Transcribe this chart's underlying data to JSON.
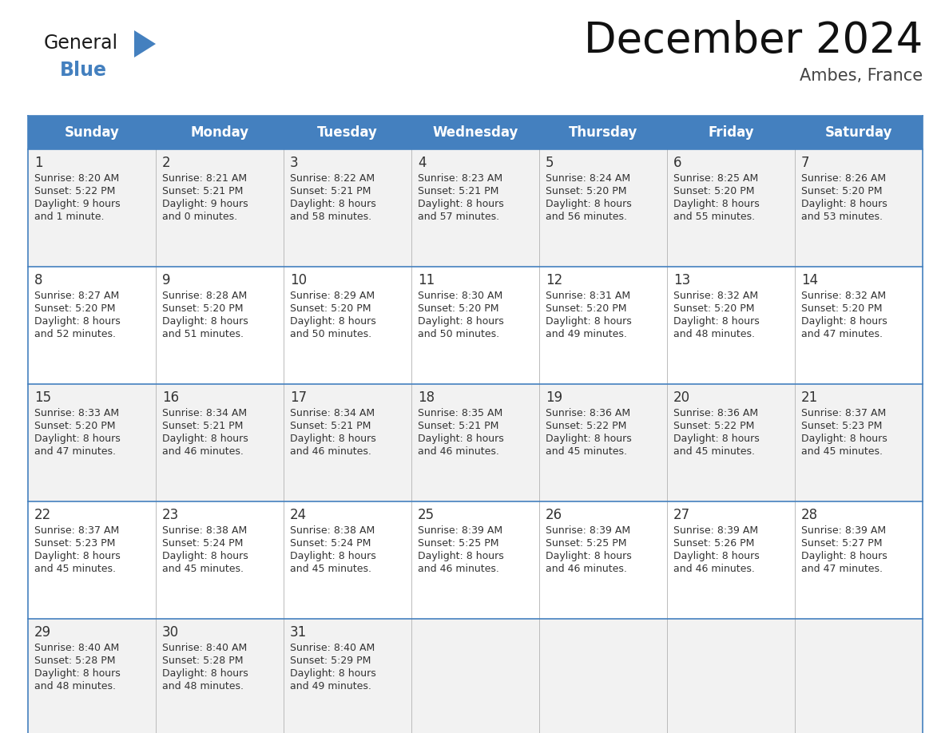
{
  "title": "December 2024",
  "subtitle": "Ambes, France",
  "header_color": "#4480BF",
  "header_text_color": "#FFFFFF",
  "cell_bg_even": "#F2F2F2",
  "cell_bg_odd": "#FFFFFF",
  "border_color": "#4480BF",
  "light_border_color": "#BBBBBB",
  "text_color": "#333333",
  "day_names": [
    "Sunday",
    "Monday",
    "Tuesday",
    "Wednesday",
    "Thursday",
    "Friday",
    "Saturday"
  ],
  "days": [
    {
      "day": 1,
      "col": 0,
      "row": 0,
      "sunrise": "8:20 AM",
      "sunset": "5:22 PM",
      "daylight_h": "9 hours",
      "daylight_m": "and 1 minute."
    },
    {
      "day": 2,
      "col": 1,
      "row": 0,
      "sunrise": "8:21 AM",
      "sunset": "5:21 PM",
      "daylight_h": "9 hours",
      "daylight_m": "and 0 minutes."
    },
    {
      "day": 3,
      "col": 2,
      "row": 0,
      "sunrise": "8:22 AM",
      "sunset": "5:21 PM",
      "daylight_h": "8 hours",
      "daylight_m": "and 58 minutes."
    },
    {
      "day": 4,
      "col": 3,
      "row": 0,
      "sunrise": "8:23 AM",
      "sunset": "5:21 PM",
      "daylight_h": "8 hours",
      "daylight_m": "and 57 minutes."
    },
    {
      "day": 5,
      "col": 4,
      "row": 0,
      "sunrise": "8:24 AM",
      "sunset": "5:20 PM",
      "daylight_h": "8 hours",
      "daylight_m": "and 56 minutes."
    },
    {
      "day": 6,
      "col": 5,
      "row": 0,
      "sunrise": "8:25 AM",
      "sunset": "5:20 PM",
      "daylight_h": "8 hours",
      "daylight_m": "and 55 minutes."
    },
    {
      "day": 7,
      "col": 6,
      "row": 0,
      "sunrise": "8:26 AM",
      "sunset": "5:20 PM",
      "daylight_h": "8 hours",
      "daylight_m": "and 53 minutes."
    },
    {
      "day": 8,
      "col": 0,
      "row": 1,
      "sunrise": "8:27 AM",
      "sunset": "5:20 PM",
      "daylight_h": "8 hours",
      "daylight_m": "and 52 minutes."
    },
    {
      "day": 9,
      "col": 1,
      "row": 1,
      "sunrise": "8:28 AM",
      "sunset": "5:20 PM",
      "daylight_h": "8 hours",
      "daylight_m": "and 51 minutes."
    },
    {
      "day": 10,
      "col": 2,
      "row": 1,
      "sunrise": "8:29 AM",
      "sunset": "5:20 PM",
      "daylight_h": "8 hours",
      "daylight_m": "and 50 minutes."
    },
    {
      "day": 11,
      "col": 3,
      "row": 1,
      "sunrise": "8:30 AM",
      "sunset": "5:20 PM",
      "daylight_h": "8 hours",
      "daylight_m": "and 50 minutes."
    },
    {
      "day": 12,
      "col": 4,
      "row": 1,
      "sunrise": "8:31 AM",
      "sunset": "5:20 PM",
      "daylight_h": "8 hours",
      "daylight_m": "and 49 minutes."
    },
    {
      "day": 13,
      "col": 5,
      "row": 1,
      "sunrise": "8:32 AM",
      "sunset": "5:20 PM",
      "daylight_h": "8 hours",
      "daylight_m": "and 48 minutes."
    },
    {
      "day": 14,
      "col": 6,
      "row": 1,
      "sunrise": "8:32 AM",
      "sunset": "5:20 PM",
      "daylight_h": "8 hours",
      "daylight_m": "and 47 minutes."
    },
    {
      "day": 15,
      "col": 0,
      "row": 2,
      "sunrise": "8:33 AM",
      "sunset": "5:20 PM",
      "daylight_h": "8 hours",
      "daylight_m": "and 47 minutes."
    },
    {
      "day": 16,
      "col": 1,
      "row": 2,
      "sunrise": "8:34 AM",
      "sunset": "5:21 PM",
      "daylight_h": "8 hours",
      "daylight_m": "and 46 minutes."
    },
    {
      "day": 17,
      "col": 2,
      "row": 2,
      "sunrise": "8:34 AM",
      "sunset": "5:21 PM",
      "daylight_h": "8 hours",
      "daylight_m": "and 46 minutes."
    },
    {
      "day": 18,
      "col": 3,
      "row": 2,
      "sunrise": "8:35 AM",
      "sunset": "5:21 PM",
      "daylight_h": "8 hours",
      "daylight_m": "and 46 minutes."
    },
    {
      "day": 19,
      "col": 4,
      "row": 2,
      "sunrise": "8:36 AM",
      "sunset": "5:22 PM",
      "daylight_h": "8 hours",
      "daylight_m": "and 45 minutes."
    },
    {
      "day": 20,
      "col": 5,
      "row": 2,
      "sunrise": "8:36 AM",
      "sunset": "5:22 PM",
      "daylight_h": "8 hours",
      "daylight_m": "and 45 minutes."
    },
    {
      "day": 21,
      "col": 6,
      "row": 2,
      "sunrise": "8:37 AM",
      "sunset": "5:23 PM",
      "daylight_h": "8 hours",
      "daylight_m": "and 45 minutes."
    },
    {
      "day": 22,
      "col": 0,
      "row": 3,
      "sunrise": "8:37 AM",
      "sunset": "5:23 PM",
      "daylight_h": "8 hours",
      "daylight_m": "and 45 minutes."
    },
    {
      "day": 23,
      "col": 1,
      "row": 3,
      "sunrise": "8:38 AM",
      "sunset": "5:24 PM",
      "daylight_h": "8 hours",
      "daylight_m": "and 45 minutes."
    },
    {
      "day": 24,
      "col": 2,
      "row": 3,
      "sunrise": "8:38 AM",
      "sunset": "5:24 PM",
      "daylight_h": "8 hours",
      "daylight_m": "and 45 minutes."
    },
    {
      "day": 25,
      "col": 3,
      "row": 3,
      "sunrise": "8:39 AM",
      "sunset": "5:25 PM",
      "daylight_h": "8 hours",
      "daylight_m": "and 46 minutes."
    },
    {
      "day": 26,
      "col": 4,
      "row": 3,
      "sunrise": "8:39 AM",
      "sunset": "5:25 PM",
      "daylight_h": "8 hours",
      "daylight_m": "and 46 minutes."
    },
    {
      "day": 27,
      "col": 5,
      "row": 3,
      "sunrise": "8:39 AM",
      "sunset": "5:26 PM",
      "daylight_h": "8 hours",
      "daylight_m": "and 46 minutes."
    },
    {
      "day": 28,
      "col": 6,
      "row": 3,
      "sunrise": "8:39 AM",
      "sunset": "5:27 PM",
      "daylight_h": "8 hours",
      "daylight_m": "and 47 minutes."
    },
    {
      "day": 29,
      "col": 0,
      "row": 4,
      "sunrise": "8:40 AM",
      "sunset": "5:28 PM",
      "daylight_h": "8 hours",
      "daylight_m": "and 48 minutes."
    },
    {
      "day": 30,
      "col": 1,
      "row": 4,
      "sunrise": "8:40 AM",
      "sunset": "5:28 PM",
      "daylight_h": "8 hours",
      "daylight_m": "and 48 minutes."
    },
    {
      "day": 31,
      "col": 2,
      "row": 4,
      "sunrise": "8:40 AM",
      "sunset": "5:29 PM",
      "daylight_h": "8 hours",
      "daylight_m": "and 49 minutes."
    }
  ],
  "logo_general_color": "#1A1A1A",
  "logo_blue_color": "#4480BF",
  "logo_triangle_color": "#4480BF",
  "title_fontsize": 38,
  "subtitle_fontsize": 15,
  "header_fontsize": 12,
  "day_num_fontsize": 12,
  "cell_text_fontsize": 9
}
